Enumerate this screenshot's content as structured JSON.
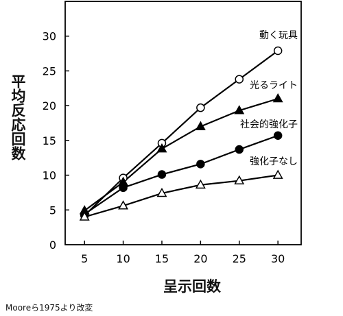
{
  "chart_data": {
    "type": "line",
    "ylabel": "平均反応回数",
    "xlabel": "呈示回数",
    "x": [
      5,
      10,
      15,
      20,
      25,
      30
    ],
    "xlim": [
      2.5,
      33
    ],
    "ylim": [
      0,
      35
    ],
    "yticks": [
      0,
      5,
      10,
      15,
      20,
      25,
      30
    ],
    "legend_placement": "labels at line ends",
    "grid": false,
    "series": [
      {
        "name": "動く玩具",
        "marker": "open-circle",
        "values": [
          4.2,
          9.6,
          14.6,
          19.7,
          23.8,
          27.9
        ]
      },
      {
        "name": "光るライト",
        "marker": "filled-triangle",
        "values": [
          4.9,
          9.0,
          13.8,
          17.0,
          19.3,
          21.0
        ]
      },
      {
        "name": "社会的強化子",
        "marker": "filled-circle",
        "values": [
          4.4,
          8.2,
          10.1,
          11.6,
          13.7,
          15.7
        ]
      },
      {
        "name": "強化子なし",
        "marker": "open-triangle",
        "values": [
          4.0,
          5.6,
          7.4,
          8.6,
          9.2,
          10.0
        ]
      }
    ]
  },
  "source": "Mooreら1975より改変"
}
